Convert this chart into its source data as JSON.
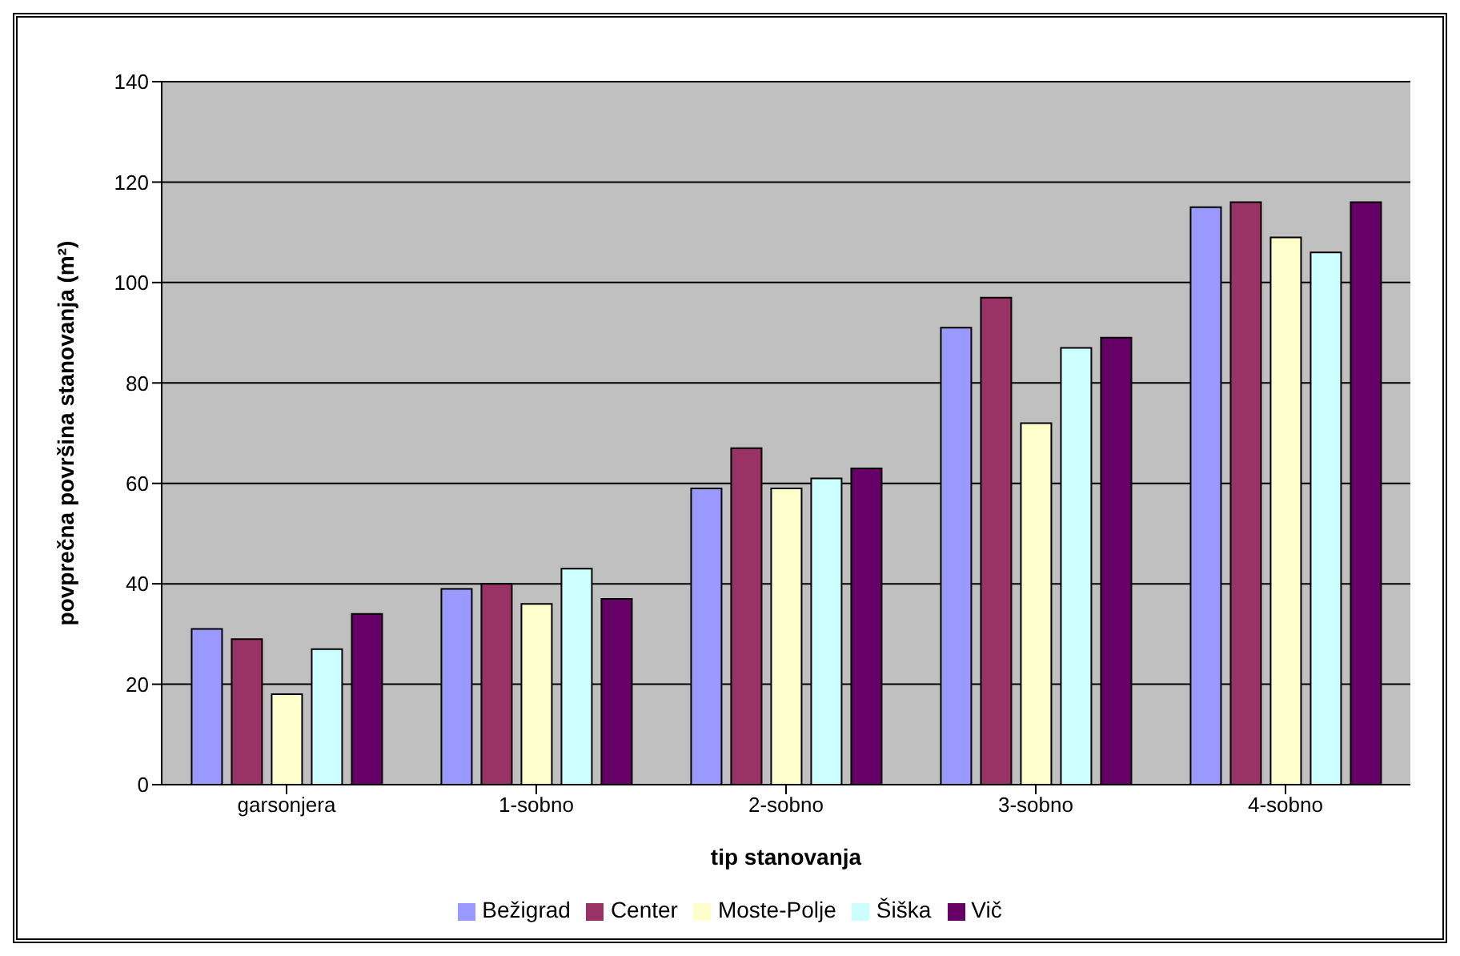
{
  "chart_data": {
    "type": "bar",
    "xlabel": "tip stanovanja",
    "ylabel": "povprečna površina stanovanja (m²)",
    "categories": [
      "garsonjera",
      "1-sobno",
      "2-sobno",
      "3-sobno",
      "4-sobno"
    ],
    "series": [
      {
        "name": "Bežigrad",
        "color": "#9999ff",
        "values": [
          31,
          39,
          59,
          91,
          115
        ]
      },
      {
        "name": "Center",
        "color": "#993366",
        "values": [
          29,
          40,
          67,
          97,
          116
        ]
      },
      {
        "name": "Moste-Polje",
        "color": "#ffffcc",
        "values": [
          18,
          36,
          59,
          72,
          109
        ]
      },
      {
        "name": "Šiška",
        "color": "#ccffff",
        "values": [
          27,
          43,
          61,
          87,
          106
        ]
      },
      {
        "name": "Vič",
        "color": "#660066",
        "values": [
          34,
          37,
          63,
          89,
          116
        ]
      }
    ],
    "ylim": [
      0,
      140
    ],
    "yticks": [
      0,
      20,
      40,
      60,
      80,
      100,
      120,
      140
    ],
    "grid": "y",
    "legend": "bottom"
  }
}
